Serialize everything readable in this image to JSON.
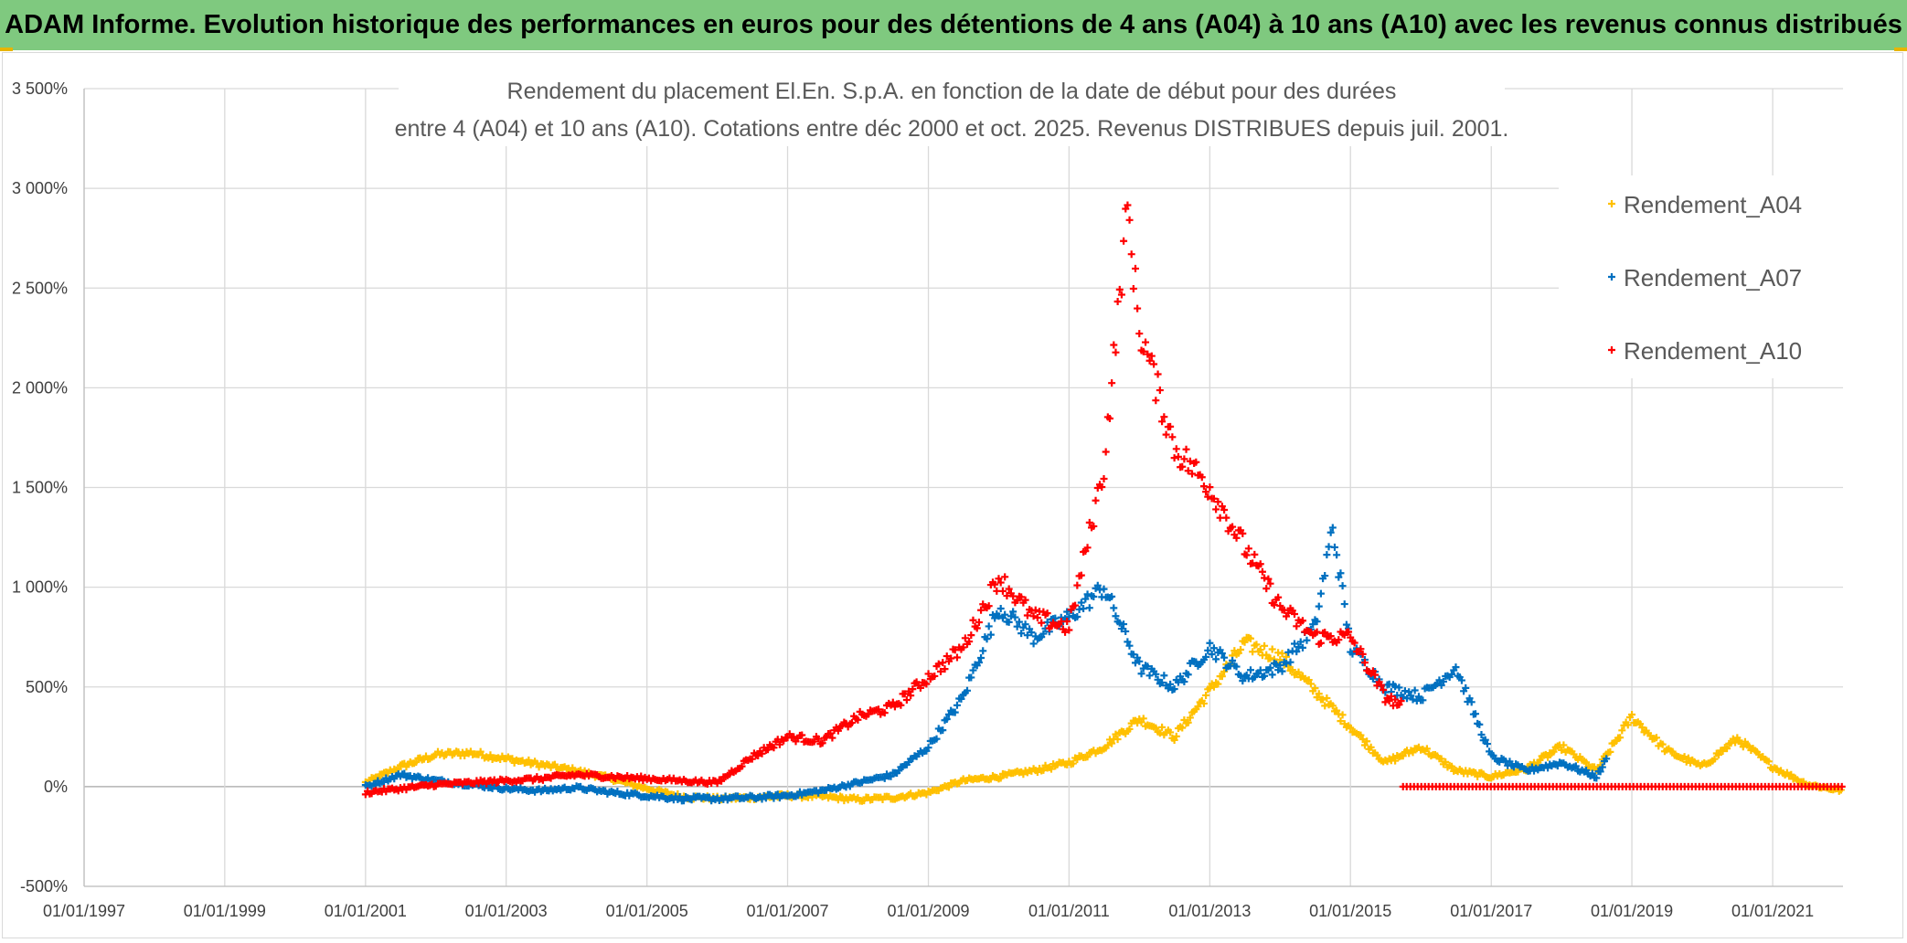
{
  "banner": {
    "text": "ADAM Informe. Evolution historique des performances en euros pour des détentions de 4 ans (A04) à 10 ans (A10) avec les revenus connus distribués"
  },
  "colors": {
    "banner_bg": "#7fc97f",
    "A04": "#ffc000",
    "A07": "#0070c0",
    "A10": "#ff0000",
    "grid": "#d9d9d9"
  },
  "chart_data": {
    "type": "scatter",
    "title": [
      "Rendement du placement El.En. S.p.A. en fonction de la date de début pour des durées",
      "entre 4 (A04) et 10 ans (A10). Cotations entre déc 2000 et oct. 2025. Revenus DISTRIBUES depuis juil. 2001."
    ],
    "marker": "+",
    "x_range": [
      "1997-01-01",
      "2022-01-01"
    ],
    "x_ticks": [
      "01/01/1997",
      "01/01/1999",
      "01/01/2001",
      "01/01/2003",
      "01/01/2005",
      "01/01/2007",
      "01/01/2009",
      "01/01/2011",
      "01/01/2013",
      "01/01/2015",
      "01/01/2017",
      "01/01/2019",
      "01/01/2021"
    ],
    "y_range": [
      -500,
      3500
    ],
    "y_ticks": [
      "-500%",
      "0%",
      "500%",
      "1 000%",
      "1 500%",
      "2 000%",
      "2 500%",
      "3 000%",
      "3 500%"
    ],
    "y_tick_values": [
      -500,
      0,
      500,
      1000,
      1500,
      2000,
      2500,
      3000,
      3500
    ],
    "grid": true,
    "legend_position": "top-right",
    "series": [
      {
        "name": "Rendement_A04",
        "color": "#ffc000",
        "points": [
          [
            "2001-01-01",
            20
          ],
          [
            "2001-07-01",
            100
          ],
          [
            "2002-01-01",
            160
          ],
          [
            "2002-07-01",
            170
          ],
          [
            "2003-01-01",
            140
          ],
          [
            "2003-07-01",
            110
          ],
          [
            "2004-01-01",
            80
          ],
          [
            "2004-07-01",
            40
          ],
          [
            "2005-01-01",
            -10
          ],
          [
            "2005-07-01",
            -50
          ],
          [
            "2006-01-01",
            -60
          ],
          [
            "2006-07-01",
            -55
          ],
          [
            "2007-01-01",
            -45
          ],
          [
            "2007-07-01",
            -50
          ],
          [
            "2008-01-01",
            -65
          ],
          [
            "2008-07-01",
            -55
          ],
          [
            "2009-01-01",
            -30
          ],
          [
            "2009-07-01",
            30
          ],
          [
            "2010-01-01",
            50
          ],
          [
            "2010-07-01",
            80
          ],
          [
            "2011-01-01",
            120
          ],
          [
            "2011-07-01",
            200
          ],
          [
            "2012-01-01",
            340
          ],
          [
            "2012-07-01",
            250
          ],
          [
            "2013-01-01",
            480
          ],
          [
            "2013-07-01",
            720
          ],
          [
            "2014-01-01",
            650
          ],
          [
            "2014-07-01",
            480
          ],
          [
            "2015-01-01",
            300
          ],
          [
            "2015-07-01",
            120
          ],
          [
            "2016-01-01",
            200
          ],
          [
            "2016-07-01",
            80
          ],
          [
            "2017-01-01",
            50
          ],
          [
            "2017-07-01",
            90
          ],
          [
            "2018-01-01",
            200
          ],
          [
            "2018-07-01",
            80
          ],
          [
            "2019-01-01",
            350
          ],
          [
            "2019-07-01",
            180
          ],
          [
            "2020-01-01",
            100
          ],
          [
            "2020-07-01",
            240
          ],
          [
            "2021-01-01",
            100
          ],
          [
            "2021-07-01",
            10
          ],
          [
            "2022-01-01",
            -20
          ]
        ]
      },
      {
        "name": "Rendement_A07",
        "color": "#0070c0",
        "points": [
          [
            "2001-01-01",
            0
          ],
          [
            "2001-07-01",
            60
          ],
          [
            "2002-01-01",
            30
          ],
          [
            "2002-07-01",
            10
          ],
          [
            "2003-01-01",
            -10
          ],
          [
            "2003-07-01",
            -20
          ],
          [
            "2004-01-01",
            -5
          ],
          [
            "2004-07-01",
            -30
          ],
          [
            "2005-01-01",
            -45
          ],
          [
            "2005-07-01",
            -60
          ],
          [
            "2006-01-01",
            -60
          ],
          [
            "2006-07-01",
            -55
          ],
          [
            "2007-01-01",
            -45
          ],
          [
            "2007-07-01",
            -20
          ],
          [
            "2008-01-01",
            20
          ],
          [
            "2008-07-01",
            60
          ],
          [
            "2009-01-01",
            200
          ],
          [
            "2009-07-01",
            450
          ],
          [
            "2010-01-01",
            900
          ],
          [
            "2010-07-01",
            750
          ],
          [
            "2011-01-01",
            850
          ],
          [
            "2011-07-01",
            1000
          ],
          [
            "2012-01-01",
            600
          ],
          [
            "2012-07-01",
            500
          ],
          [
            "2013-01-01",
            700
          ],
          [
            "2013-07-01",
            550
          ],
          [
            "2014-01-01",
            600
          ],
          [
            "2014-07-01",
            800
          ],
          [
            "2014-10-01",
            1300
          ],
          [
            "2015-01-01",
            700
          ],
          [
            "2015-07-01",
            500
          ],
          [
            "2016-01-01",
            450
          ],
          [
            "2016-07-01",
            600
          ],
          [
            "2017-01-01",
            150
          ],
          [
            "2017-07-01",
            80
          ],
          [
            "2018-01-01",
            120
          ],
          [
            "2018-07-01",
            50
          ],
          [
            "2018-09-01",
            150
          ]
        ]
      },
      {
        "name": "Rendement_A10",
        "color": "#ff0000",
        "points": [
          [
            "2001-01-01",
            -30
          ],
          [
            "2001-07-01",
            -10
          ],
          [
            "2002-01-01",
            10
          ],
          [
            "2002-07-01",
            20
          ],
          [
            "2003-01-01",
            30
          ],
          [
            "2003-07-01",
            40
          ],
          [
            "2004-01-01",
            60
          ],
          [
            "2004-07-01",
            50
          ],
          [
            "2005-01-01",
            40
          ],
          [
            "2005-07-01",
            30
          ],
          [
            "2006-01-01",
            20
          ],
          [
            "2006-07-01",
            150
          ],
          [
            "2007-01-01",
            250
          ],
          [
            "2007-07-01",
            230
          ],
          [
            "2008-01-01",
            350
          ],
          [
            "2008-07-01",
            400
          ],
          [
            "2009-01-01",
            550
          ],
          [
            "2009-07-01",
            700
          ],
          [
            "2010-01-01",
            1050
          ],
          [
            "2010-07-01",
            850
          ],
          [
            "2011-01-01",
            800
          ],
          [
            "2011-07-01",
            1600
          ],
          [
            "2011-11-01",
            2900
          ],
          [
            "2012-01-01",
            2300
          ],
          [
            "2012-07-01",
            1700
          ],
          [
            "2013-01-01",
            1500
          ],
          [
            "2013-07-01",
            1200
          ],
          [
            "2014-01-01",
            900
          ],
          [
            "2014-07-01",
            750
          ],
          [
            "2015-01-01",
            750
          ],
          [
            "2015-07-01",
            450
          ],
          [
            "2015-10-01",
            400
          ]
        ]
      }
    ],
    "A10_zero_from": "2015-10-01"
  }
}
